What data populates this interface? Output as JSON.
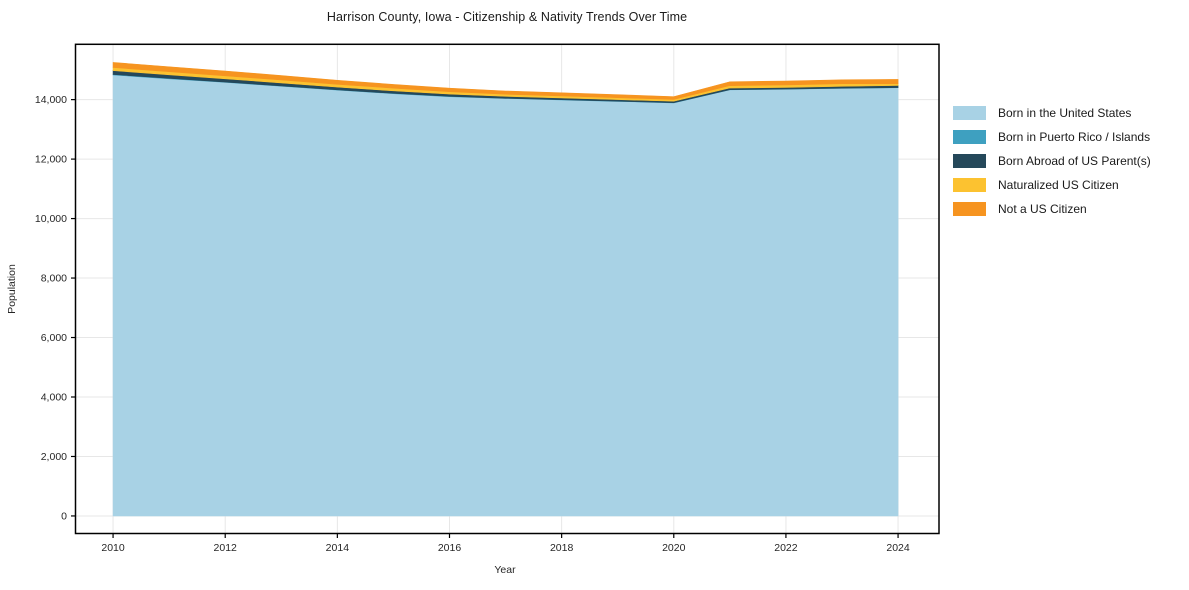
{
  "chart_data": {
    "type": "area",
    "stacked": true,
    "title": "Harrison County, Iowa - Citizenship & Nativity Trends Over Time",
    "xlabel": "Year",
    "ylabel": "Population",
    "x": [
      2010,
      2011,
      2012,
      2013,
      2014,
      2015,
      2016,
      2017,
      2018,
      2019,
      2020,
      2021,
      2022,
      2023,
      2024
    ],
    "series": [
      {
        "name": "Born in the United States",
        "color": "#a8d2e5",
        "values": [
          14830,
          14700,
          14580,
          14450,
          14320,
          14200,
          14100,
          14040,
          13990,
          13940,
          13890,
          14330,
          14350,
          14380,
          14400
        ]
      },
      {
        "name": "Born in Puerto Rico / Islands",
        "color": "#3ea0c0",
        "values": [
          15,
          15,
          10,
          10,
          10,
          10,
          10,
          5,
          5,
          5,
          5,
          5,
          5,
          5,
          5
        ]
      },
      {
        "name": "Born Abroad of US Parent(s)",
        "color": "#25485a",
        "values": [
          130,
          120,
          110,
          100,
          90,
          85,
          75,
          65,
          60,
          55,
          50,
          55,
          55,
          60,
          70
        ]
      },
      {
        "name": "Naturalized US Citizen",
        "color": "#fcc230",
        "values": [
          105,
          105,
          100,
          100,
          95,
          90,
          80,
          70,
          70,
          65,
          60,
          80,
          85,
          90,
          60
        ]
      },
      {
        "name": "Not a US Citizen",
        "color": "#f69420",
        "values": [
          170,
          165,
          160,
          150,
          135,
          125,
          120,
          110,
          105,
          100,
          95,
          130,
          130,
          130,
          145
        ]
      }
    ],
    "totals": [
      15250,
      15105,
      14960,
      14810,
      14650,
      14510,
      14385,
      14290,
      14230,
      14165,
      14100,
      14600,
      14625,
      14665,
      14680
    ],
    "x_ticks": [
      2010,
      2012,
      2014,
      2016,
      2018,
      2020,
      2022,
      2024
    ],
    "x_tick_labels": [
      "2010",
      "2012",
      "2014",
      "2016",
      "2018",
      "2020",
      "2022",
      "2024"
    ],
    "y_ticks": [
      0,
      2000,
      4000,
      6000,
      8000,
      10000,
      12000,
      14000
    ],
    "y_tick_labels": [
      "0",
      "2,000",
      "4,000",
      "6,000",
      "8,000",
      "10,000",
      "12,000",
      "14,000"
    ],
    "xlim": [
      2009.33,
      2024.73
    ],
    "ylim": [
      -590,
      15860
    ],
    "grid": true,
    "legend_position": "right-outside",
    "colors": {
      "background": "#ffffff",
      "gridline": "#e7e7e7",
      "spine": "#000000",
      "tick_text": "#262626"
    }
  }
}
